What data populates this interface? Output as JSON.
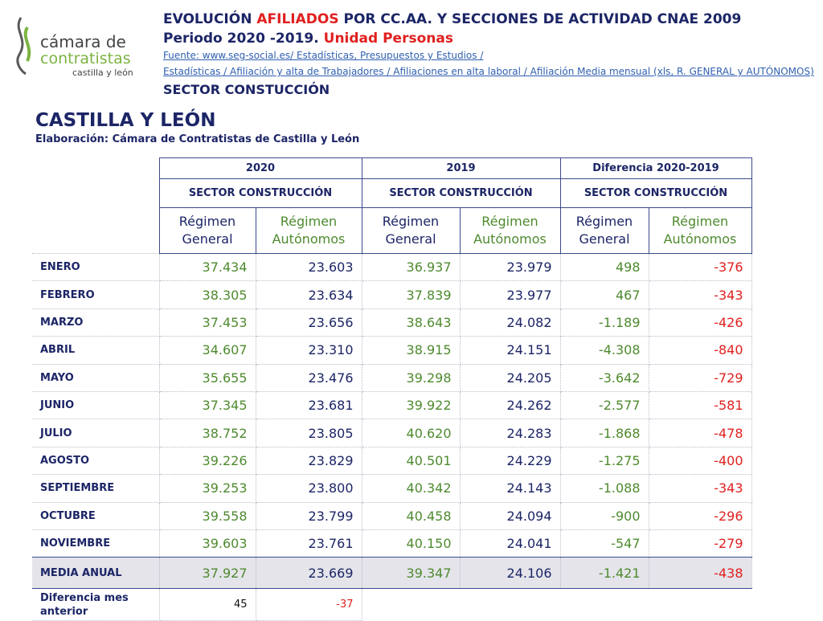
{
  "logo": {
    "line1": "cámara de",
    "line2": "contratistas",
    "line3": "castilla y león"
  },
  "header": {
    "title": {
      "part1": "EVOLUCIÓN ",
      "part2": "AFILIADOS",
      "part3": " POR CC.AA. Y SECCIONES DE ACTIVIDAD CNAE 2009"
    },
    "period": {
      "part1": "Periodo 2020 -2019. ",
      "part2": "Unidad Personas"
    },
    "source1": "Fuente: www.seg-social.es/ Estadísticas, Presupuestos y Estudios  /",
    "source2": "Estadísticas / Afiliación y alta de Trabajadores / Afiliaciones en alta laboral  / Afiliación Media mensual (xls, R. GENERAL y AUTÓNOMOS)",
    "sector": "SECTOR CONSTUCCIÓN"
  },
  "region": "CASTILLA Y LEÓN",
  "credit": "Elaboración: Cámara de Contratistas de Castilla y León",
  "table": {
    "years": [
      "2020",
      "2019",
      "Diferencia 2020-2019"
    ],
    "sectors": [
      "SECTOR CONSTRUCCIÓN",
      "SECTOR CONSTRUCCIÓN",
      "SECTOR CONSTRUCCIÓN"
    ],
    "regimes": [
      [
        "Régimen",
        "General"
      ],
      [
        "Régimen",
        "Autónomos"
      ],
      [
        "Régimen",
        "General"
      ],
      [
        "Régimen",
        "Autónomos"
      ],
      [
        "Régimen",
        "General"
      ],
      [
        "Régimen",
        "Autónomos"
      ]
    ],
    "rows": [
      [
        "ENERO",
        "37.434",
        "23.603",
        "36.937",
        "23.979",
        "498",
        "-376"
      ],
      [
        "FEBRERO",
        "38.305",
        "23.634",
        "37.839",
        "23.977",
        "467",
        "-343"
      ],
      [
        "MARZO",
        "37.453",
        "23.656",
        "38.643",
        "24.082",
        "-1.189",
        "-426"
      ],
      [
        "ABRIL",
        "34.607",
        "23.310",
        "38.915",
        "24.151",
        "-4.308",
        "-840"
      ],
      [
        "MAYO",
        "35.655",
        "23.476",
        "39.298",
        "24.205",
        "-3.642",
        "-729"
      ],
      [
        "JUNIO",
        "37.345",
        "23.681",
        "39.922",
        "24.262",
        "-2.577",
        "-581"
      ],
      [
        "JULIO",
        "38.752",
        "23.805",
        "40.620",
        "24.283",
        "-1.868",
        "-478"
      ],
      [
        "AGOSTO",
        "39.226",
        "23.829",
        "40.501",
        "24.229",
        "-1.275",
        "-400"
      ],
      [
        "SEPTIEMBRE",
        "39.253",
        "23.800",
        "40.342",
        "24.143",
        "-1.088",
        "-343"
      ],
      [
        "OCTUBRE",
        "39.558",
        "23.799",
        "40.458",
        "24.094",
        "-900",
        "-296"
      ],
      [
        "NOVIEMBRE",
        "39.603",
        "23.761",
        "40.150",
        "24.041",
        "-547",
        "-279"
      ]
    ],
    "average": [
      "MEDIA ANUAL",
      "37.927",
      "23.669",
      "39.347",
      "24.106",
      "-1.421",
      "-438"
    ],
    "monthly_diff": [
      "Diferencia mes anterior",
      "45",
      "-37"
    ]
  }
}
